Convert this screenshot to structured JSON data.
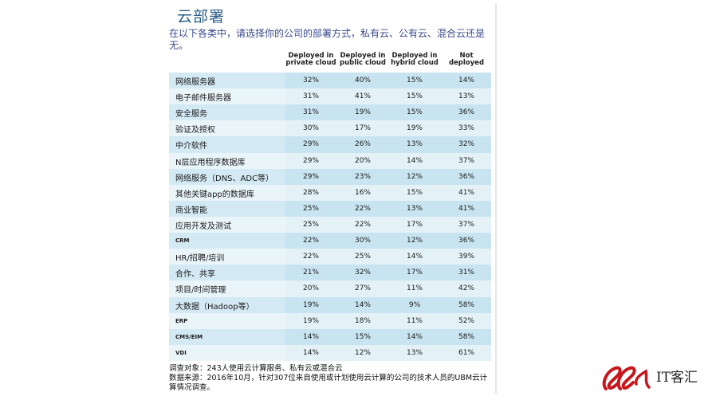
{
  "title": "云部署",
  "subtitle": "在以下各类中，请选择你的公司的部署方式，私有云、公有云、混合云还是无。",
  "chart_data": {
    "type": "table",
    "columns": [
      "Deployed in\nprivate cloud",
      "Deployed in\npublic cloud",
      "Deployed in\nhybrid cloud",
      "Not\ndeployed"
    ],
    "rows": [
      {
        "label": "网络服务器",
        "values": [
          "32%",
          "40%",
          "15%",
          "14%"
        ]
      },
      {
        "label": "电子邮件服务器",
        "values": [
          "31%",
          "41%",
          "15%",
          "13%"
        ]
      },
      {
        "label": "安全服务",
        "values": [
          "31%",
          "19%",
          "15%",
          "36%"
        ]
      },
      {
        "label": "验证及授权",
        "values": [
          "30%",
          "17%",
          "19%",
          "33%"
        ]
      },
      {
        "label": "中介软件",
        "values": [
          "29%",
          "26%",
          "13%",
          "32%"
        ]
      },
      {
        "label": "N层应用程序数据库",
        "values": [
          "29%",
          "20%",
          "14%",
          "37%"
        ]
      },
      {
        "label": "网络服务（DNS、ADC等）",
        "values": [
          "29%",
          "23%",
          "12%",
          "36%"
        ]
      },
      {
        "label": "其他关键app的数据库",
        "values": [
          "28%",
          "16%",
          "15%",
          "41%"
        ]
      },
      {
        "label": "商业智能",
        "values": [
          "25%",
          "22%",
          "13%",
          "41%"
        ]
      },
      {
        "label": "应用开发及测试",
        "values": [
          "25%",
          "22%",
          "17%",
          "37%"
        ]
      },
      {
        "label": "CRM",
        "values": [
          "22%",
          "30%",
          "12%",
          "36%"
        ],
        "small": true
      },
      {
        "label": "HR/招聘/培训",
        "values": [
          "22%",
          "25%",
          "14%",
          "39%"
        ]
      },
      {
        "label": "合作、共享",
        "values": [
          "21%",
          "32%",
          "17%",
          "31%"
        ]
      },
      {
        "label": "项目/时间管理",
        "values": [
          "20%",
          "27%",
          "11%",
          "42%"
        ]
      },
      {
        "label": "大数据（Hadoop等）",
        "values": [
          "19%",
          "14%",
          "9%",
          "58%"
        ]
      },
      {
        "label": "ERP",
        "values": [
          "19%",
          "18%",
          "11%",
          "52%"
        ],
        "small": true
      },
      {
        "label": "CMS/EIM",
        "values": [
          "14%",
          "15%",
          "14%",
          "58%"
        ],
        "small": true
      },
      {
        "label": "VDI",
        "values": [
          "14%",
          "12%",
          "13%",
          "61%"
        ],
        "small": true
      }
    ]
  },
  "notes": {
    "line1": "调查对象：243人使用云计算服务、私有云或混合云",
    "line2": "数据来源：2016年10月，针对307位来自使用或计划使用云计算的公司的技术人员的UBM云计算情况调查。"
  },
  "logo": {
    "text": "IT客汇"
  },
  "colors": {
    "title": "#2c5f8a",
    "subtitle": "#3a4a8c",
    "row_even": "#c9e4f1",
    "row_odd": "#e4f2f8",
    "logo_red": "#c8161d"
  }
}
